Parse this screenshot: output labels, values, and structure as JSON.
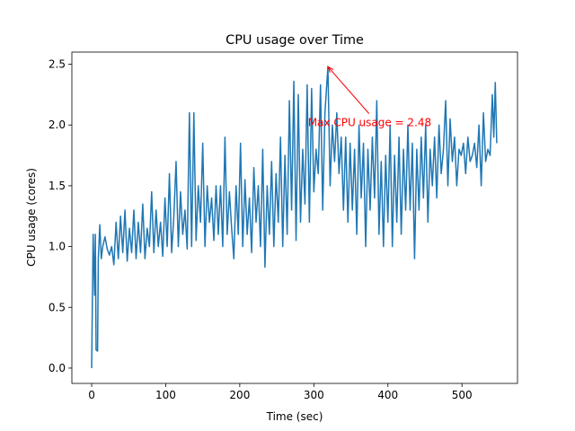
{
  "chart_data": {
    "type": "line",
    "title": "CPU usage over Time",
    "xlabel": "Time (sec)",
    "ylabel": "CPU usage (cores)",
    "color": "#1f77b4",
    "x": [
      0,
      2,
      4,
      5,
      6,
      8,
      9,
      11,
      13,
      15,
      18,
      21,
      24,
      27,
      30,
      33,
      36,
      39,
      42,
      45,
      48,
      51,
      54,
      57,
      60,
      63,
      66,
      69,
      72,
      75,
      78,
      81,
      84,
      87,
      90,
      93,
      96,
      99,
      102,
      105,
      108,
      111,
      114,
      117,
      120,
      123,
      126,
      129,
      132,
      135,
      138,
      141,
      144,
      147,
      150,
      153,
      156,
      159,
      162,
      165,
      168,
      171,
      174,
      177,
      180,
      183,
      186,
      189,
      192,
      195,
      198,
      201,
      204,
      207,
      210,
      213,
      216,
      219,
      222,
      225,
      228,
      231,
      234,
      237,
      240,
      243,
      246,
      249,
      252,
      255,
      258,
      261,
      264,
      267,
      270,
      273,
      276,
      279,
      282,
      285,
      288,
      291,
      294,
      297,
      300,
      303,
      306,
      309,
      312,
      315,
      319,
      322,
      325,
      328,
      331,
      334,
      337,
      340,
      343,
      346,
      349,
      352,
      355,
      358,
      361,
      364,
      367,
      370,
      373,
      376,
      379,
      382,
      385,
      388,
      391,
      394,
      397,
      400,
      403,
      406,
      409,
      412,
      415,
      418,
      421,
      424,
      427,
      430,
      433,
      436,
      439,
      442,
      445,
      448,
      451,
      454,
      457,
      460,
      463,
      466,
      469,
      472,
      475,
      478,
      481,
      484,
      487,
      490,
      493,
      496,
      499,
      502,
      505,
      508,
      511,
      514,
      517,
      520,
      523,
      526,
      529,
      532,
      535,
      538,
      541,
      543,
      545,
      547
    ],
    "values": [
      0.0,
      1.1,
      0.6,
      1.1,
      0.15,
      0.14,
      0.9,
      1.18,
      0.9,
      1.0,
      1.08,
      0.98,
      0.93,
      1.0,
      0.85,
      1.2,
      0.9,
      1.25,
      0.95,
      1.3,
      0.88,
      1.15,
      0.95,
      1.3,
      0.9,
      1.2,
      0.95,
      1.35,
      0.9,
      1.15,
      1.0,
      1.45,
      0.95,
      1.3,
      1.0,
      1.2,
      0.92,
      1.4,
      1.0,
      1.6,
      0.95,
      1.25,
      1.7,
      1.0,
      1.45,
      1.1,
      1.3,
      0.98,
      2.1,
      1.0,
      2.1,
      1.05,
      1.5,
      1.2,
      1.85,
      1.0,
      1.5,
      1.2,
      1.4,
      1.05,
      1.5,
      1.1,
      1.5,
      1.0,
      1.9,
      1.1,
      1.45,
      1.15,
      0.9,
      1.5,
      1.1,
      1.85,
      1.0,
      1.55,
      1.1,
      1.4,
      0.95,
      1.65,
      1.2,
      1.5,
      1.0,
      1.8,
      0.83,
      1.5,
      1.1,
      1.7,
      1.0,
      1.6,
      1.2,
      1.9,
      1.0,
      1.75,
      1.1,
      2.2,
      1.3,
      2.36,
      1.05,
      2.25,
      1.2,
      1.8,
      1.35,
      2.33,
      1.2,
      2.3,
      1.45,
      1.8,
      1.6,
      2.33,
      1.3,
      2.1,
      2.48,
      1.5,
      2.0,
      1.7,
      2.1,
      1.6,
      1.9,
      1.3,
      1.9,
      1.2,
      1.85,
      1.3,
      1.8,
      1.1,
      2.0,
      1.4,
      1.85,
      1.0,
      1.8,
      1.3,
      1.9,
      1.4,
      2.2,
      1.1,
      1.7,
      1.0,
      1.75,
      1.2,
      2.0,
      1.0,
      1.75,
      1.2,
      1.9,
      1.1,
      1.8,
      1.3,
      2.0,
      1.3,
      1.85,
      0.9,
      1.8,
      1.3,
      1.9,
      1.4,
      2.0,
      1.2,
      1.8,
      1.5,
      1.9,
      1.4,
      2.0,
      1.6,
      1.8,
      2.2,
      1.5,
      2.05,
      1.7,
      1.9,
      1.5,
      1.8,
      1.75,
      1.85,
      1.6,
      1.9,
      1.7,
      1.75,
      1.85,
      1.65,
      2.0,
      1.5,
      2.1,
      1.7,
      1.8,
      1.75,
      2.25,
      1.9,
      2.35,
      1.85
    ],
    "xlim": [
      -26.7,
      575
    ],
    "ylim": [
      -0.126,
      2.6
    ],
    "xticks": [
      0,
      100,
      200,
      300,
      400,
      500
    ],
    "yticks": [
      {
        "value": 0,
        "label": "0.0"
      },
      0.5,
      {
        "value": 1,
        "label": "1.0"
      },
      1.5,
      {
        "value": 2,
        "label": "2.0"
      },
      2.5
    ],
    "annotation": {
      "text": "Max CPU usage = 2.48",
      "xy": [
        319,
        2.48
      ],
      "xytext": [
        292,
        2.02
      ],
      "color": "red"
    }
  }
}
